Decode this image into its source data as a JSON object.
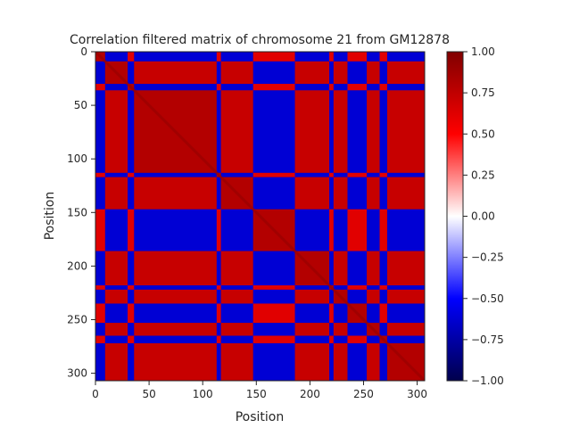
{
  "chart_data": {
    "type": "heatmap",
    "title": "Correlation filtered matrix of chromosome 21 from GM12878",
    "xlabel": "Position",
    "ylabel": "Position",
    "xlim": [
      0,
      307
    ],
    "ylim": [
      307,
      0
    ],
    "xticks": [
      0,
      50,
      100,
      150,
      200,
      250,
      300
    ],
    "yticks": [
      0,
      50,
      100,
      150,
      200,
      250,
      300
    ],
    "colorbar": {
      "range": [
        -1.0,
        1.0
      ],
      "ticks": [
        1.0,
        0.75,
        0.5,
        0.25,
        0.0,
        -0.25,
        -0.5,
        -0.75,
        -1.0
      ],
      "tick_labels": [
        "1.00",
        "0.75",
        "0.50",
        "0.25",
        "0.00",
        "−0.25",
        "−0.50",
        "−0.75",
        "−1.00"
      ],
      "colormap": "seismic"
    },
    "matrix_size": 307,
    "symmetric": true,
    "compartment_segments": [
      {
        "start": 0,
        "end": 9,
        "sign": 1
      },
      {
        "start": 9,
        "end": 30,
        "sign": -1
      },
      {
        "start": 30,
        "end": 36,
        "sign": 1
      },
      {
        "start": 36,
        "end": 113,
        "sign": -1
      },
      {
        "start": 113,
        "end": 117,
        "sign": 1
      },
      {
        "start": 117,
        "end": 147,
        "sign": -1
      },
      {
        "start": 147,
        "end": 186,
        "sign": 1
      },
      {
        "start": 186,
        "end": 218,
        "sign": -1
      },
      {
        "start": 218,
        "end": 222,
        "sign": 1
      },
      {
        "start": 222,
        "end": 235,
        "sign": -1
      },
      {
        "start": 235,
        "end": 253,
        "sign": 1
      },
      {
        "start": 253,
        "end": 265,
        "sign": -1
      },
      {
        "start": 265,
        "end": 272,
        "sign": 1
      },
      {
        "start": 272,
        "end": 307,
        "sign": -1
      }
    ],
    "notes_visible": []
  }
}
